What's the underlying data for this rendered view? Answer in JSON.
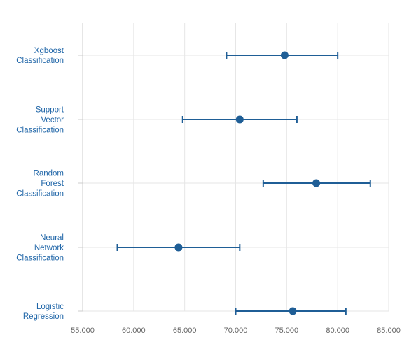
{
  "colors": {
    "series": "#1f5e96",
    "category_label": "#2066a8",
    "tick_label": "#666666",
    "grid": "#e6e6e6",
    "axis": "#cccccc"
  },
  "chart_data": {
    "type": "error-bar",
    "orientation": "horizontal",
    "title": "",
    "xlabel": "",
    "ylabel": "",
    "xlim": [
      55,
      85
    ],
    "x_ticks": [
      55,
      60,
      65,
      70,
      75,
      80,
      85
    ],
    "x_tick_labels": [
      "55.000",
      "60.000",
      "65.000",
      "70.000",
      "75.000",
      "80.000",
      "85.000"
    ],
    "grid": true,
    "legend": "none",
    "categories": [
      "Xgboost Classification",
      "Support Vector Classification",
      "Random Forest Classification",
      "Neural Network Classification",
      "Logistic Regression"
    ],
    "category_label_lines": [
      [
        "Xgboost",
        "Classification"
      ],
      [
        "Support",
        "Vector",
        "Classification"
      ],
      [
        "Random",
        "Forest",
        "Classification"
      ],
      [
        "Neural",
        "Network",
        "Classification"
      ],
      [
        "Logistic",
        "Regression"
      ]
    ],
    "series": [
      {
        "points": [
          {
            "category": "Xgboost Classification",
            "value": 74.8,
            "low": 69.1,
            "high": 80.0
          },
          {
            "category": "Support Vector Classification",
            "value": 70.4,
            "low": 64.8,
            "high": 76.0
          },
          {
            "category": "Random Forest Classification",
            "value": 77.9,
            "low": 72.7,
            "high": 83.2
          },
          {
            "category": "Neural Network Classification",
            "value": 64.4,
            "low": 58.4,
            "high": 70.4
          },
          {
            "category": "Logistic Regression",
            "value": 75.6,
            "low": 70.0,
            "high": 80.8
          }
        ]
      }
    ]
  }
}
